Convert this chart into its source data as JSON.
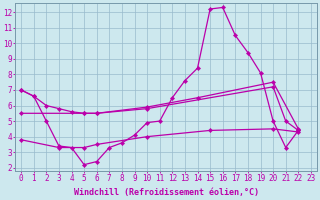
{
  "bg_color": "#cde8ee",
  "line_color": "#bb00aa",
  "grid_color": "#99bbcc",
  "xlabel": "Windchill (Refroidissement éolien,°C)",
  "xlabel_fontsize": 6.0,
  "tick_fontsize": 5.5,
  "xlim": [
    -0.5,
    23.5
  ],
  "ylim": [
    1.8,
    12.6
  ],
  "yticks": [
    2,
    3,
    4,
    5,
    6,
    7,
    8,
    9,
    10,
    11,
    12
  ],
  "xticks": [
    0,
    1,
    2,
    3,
    4,
    5,
    6,
    7,
    8,
    9,
    10,
    11,
    12,
    13,
    14,
    15,
    16,
    17,
    18,
    19,
    20,
    21,
    22,
    23
  ],
  "line1_x": [
    0,
    1,
    2,
    3,
    4,
    5,
    6,
    7,
    8,
    9,
    10,
    11,
    12,
    13,
    14,
    15,
    16,
    17,
    18,
    19,
    20,
    21,
    22
  ],
  "line1_y": [
    7.0,
    6.6,
    5.0,
    3.4,
    3.3,
    2.2,
    2.4,
    3.3,
    3.6,
    4.1,
    4.9,
    5.0,
    6.5,
    7.6,
    8.4,
    12.2,
    12.3,
    10.5,
    9.4,
    8.1,
    5.0,
    3.3,
    4.4
  ],
  "line2_x": [
    0,
    1,
    2,
    3,
    4,
    5,
    6,
    10,
    20,
    21,
    22
  ],
  "line2_y": [
    7.0,
    6.6,
    6.0,
    5.8,
    5.6,
    5.5,
    5.5,
    5.8,
    7.2,
    5.0,
    4.4
  ],
  "line3_x": [
    0,
    5,
    6,
    10,
    14,
    20,
    22
  ],
  "line3_y": [
    5.5,
    5.5,
    5.5,
    5.9,
    6.5,
    7.5,
    4.5
  ],
  "line4_x": [
    0,
    3,
    5,
    6,
    10,
    15,
    20,
    22
  ],
  "line4_y": [
    3.8,
    3.3,
    3.3,
    3.5,
    4.0,
    4.4,
    4.5,
    4.3
  ]
}
